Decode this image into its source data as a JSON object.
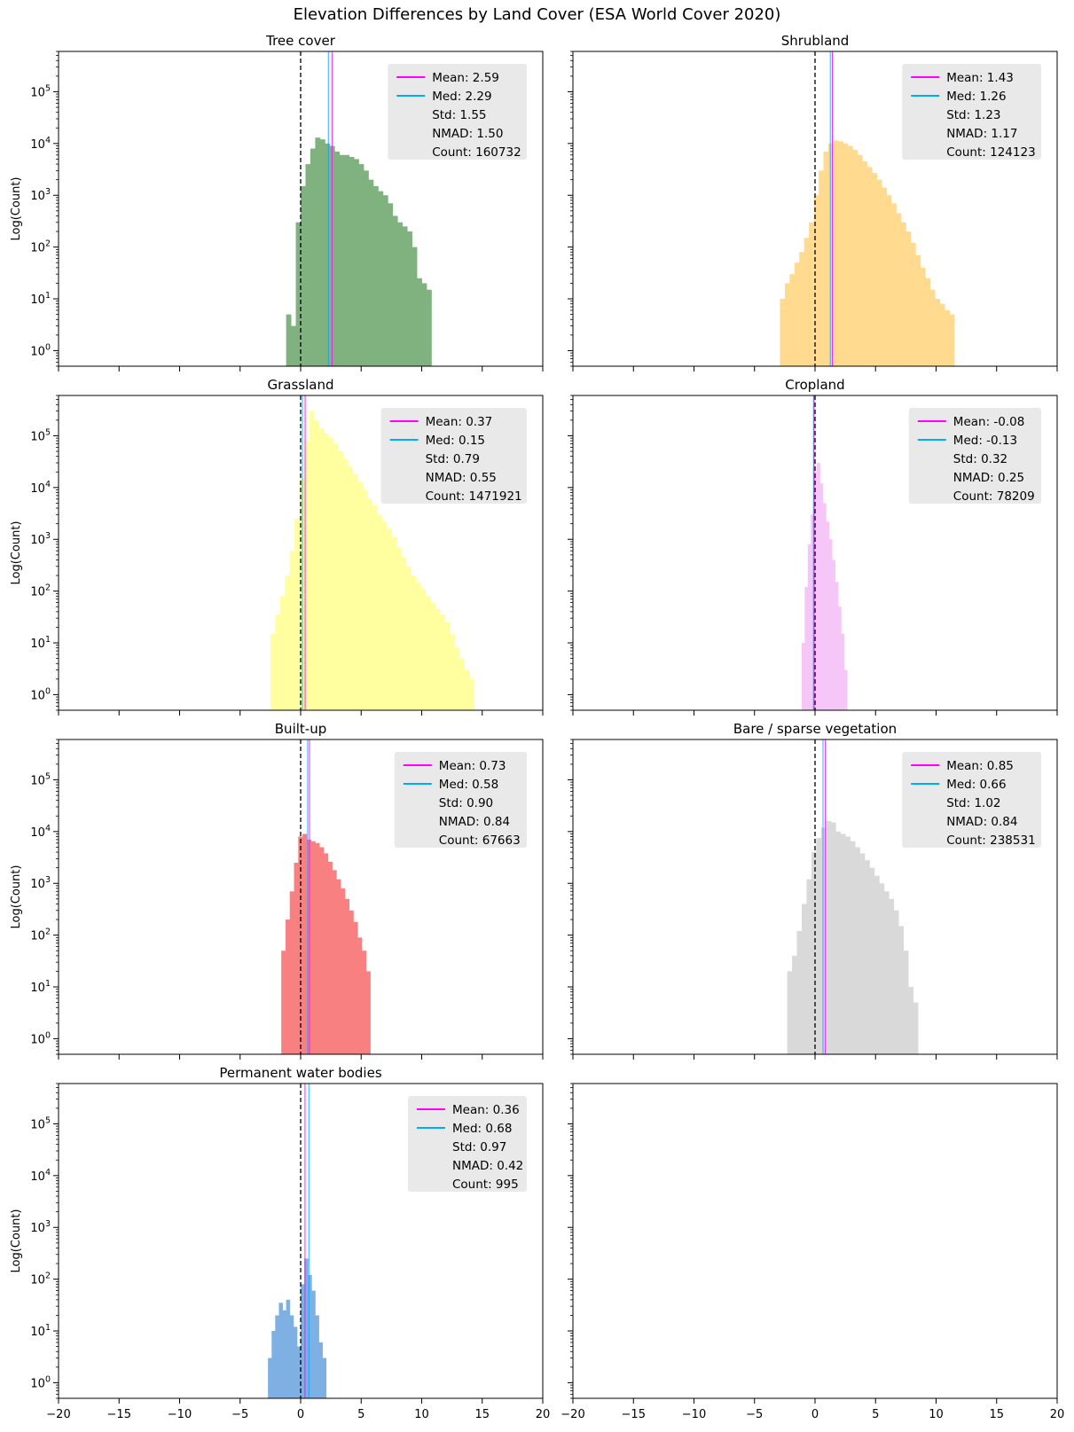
{
  "figure": {
    "title": "Elevation Differences by Land Cover (ESA World Cover 2020)",
    "colors": {
      "mean": "#ff00ff",
      "median": "#00aaff",
      "zero_line": "#000000",
      "legend_bg": "#e8e8e8"
    }
  },
  "chart_data": [
    {
      "type": "histogram",
      "title": "Tree cover",
      "ylabel": "Log(Count)",
      "xlabel": "",
      "xlim": [
        -20,
        20
      ],
      "ylim": [
        0.5,
        600000
      ],
      "yscale": "log",
      "color": "#7fb27f",
      "bin_width": 0.4,
      "bins_start": -1.2,
      "counts": [
        5,
        3,
        300,
        1500,
        4000,
        8000,
        13000,
        12000,
        10000,
        9000,
        7000,
        6000,
        6000,
        5500,
        5000,
        4000,
        3000,
        2000,
        1500,
        1200,
        1000,
        700,
        400,
        300,
        250,
        200,
        100,
        25,
        20,
        15
      ],
      "legend": {
        "mean_label": "Mean: 2.59",
        "median_label": "Med: 2.29",
        "std_label": "Std: 1.55",
        "nmad_label": "NMAD: 1.50",
        "count_label": "Count: 160732"
      },
      "mean": 2.59,
      "median": 2.29
    },
    {
      "type": "histogram",
      "title": "Shrubland",
      "ylabel": "",
      "xlabel": "",
      "xlim": [
        -20,
        20
      ],
      "ylim": [
        0.5,
        600000
      ],
      "yscale": "log",
      "color": "#ffda8f",
      "bin_width": 0.4,
      "bins_start": -2.9,
      "counts": [
        10,
        20,
        30,
        50,
        80,
        150,
        300,
        1000,
        3000,
        7000,
        10000,
        11500,
        11000,
        10000,
        9000,
        7500,
        6000,
        4500,
        3500,
        2700,
        2000,
        1400,
        1000,
        700,
        450,
        300,
        200,
        120,
        70,
        40,
        25,
        15,
        10,
        8,
        6,
        5
      ],
      "legend": {
        "mean_label": "Mean: 1.43",
        "median_label": "Med: 1.26",
        "std_label": "Std: 1.23",
        "nmad_label": "NMAD: 1.17",
        "count_label": "Count: 124123"
      },
      "mean": 1.43,
      "median": 1.26
    },
    {
      "type": "histogram",
      "title": "Grassland",
      "ylabel": "Log(Count)",
      "xlabel": "",
      "xlim": [
        -20,
        20
      ],
      "ylim": [
        0.5,
        600000
      ],
      "yscale": "log",
      "color": "#ffffa0",
      "bin_width": 0.4,
      "bins_start": -2.5,
      "counts": [
        15,
        35,
        80,
        200,
        600,
        2500,
        15000,
        80000,
        300000,
        200000,
        140000,
        110000,
        90000,
        70000,
        50000,
        35000,
        25000,
        18000,
        13000,
        9000,
        6000,
        4500,
        3000,
        2200,
        1600,
        1100,
        700,
        450,
        300,
        200,
        150,
        110,
        80,
        60,
        45,
        35,
        25,
        15,
        8,
        5,
        3,
        2
      ],
      "legend": {
        "mean_label": "Mean: 0.37",
        "median_label": "Med: 0.15",
        "std_label": "Std: 0.79",
        "nmad_label": "NMAD: 0.55",
        "count_label": "Count: 1471921"
      },
      "mean": 0.37,
      "median": 0.15
    },
    {
      "type": "histogram",
      "title": "Cropland",
      "ylabel": "",
      "xlabel": "",
      "xlim": [
        -20,
        20
      ],
      "ylim": [
        0.5,
        600000
      ],
      "yscale": "log",
      "color": "#f5c6f7",
      "bin_width": 0.25,
      "bins_start": -1.1,
      "counts": [
        10,
        120,
        800,
        3000,
        20000,
        30000,
        12000,
        5000,
        2200,
        1000,
        400,
        150,
        50,
        15,
        3
      ],
      "legend": {
        "mean_label": "Mean: -0.08",
        "median_label": "Med: -0.13",
        "std_label": "Std: 0.32",
        "nmad_label": "NMAD: 0.25",
        "count_label": "Count: 78209"
      },
      "mean": -0.08,
      "median": -0.13
    },
    {
      "type": "histogram",
      "title": "Built-up",
      "ylabel": "Log(Count)",
      "xlabel": "",
      "xlim": [
        -20,
        20
      ],
      "ylim": [
        0.5,
        600000
      ],
      "yscale": "log",
      "color": "#f98080",
      "bin_width": 0.35,
      "bins_start": -1.6,
      "counts": [
        50,
        200,
        700,
        2500,
        8000,
        9000,
        7000,
        6500,
        6000,
        5000,
        3800,
        2600,
        1800,
        1200,
        800,
        500,
        300,
        180,
        90,
        50,
        20
      ],
      "legend": {
        "mean_label": "Mean: 0.73",
        "median_label": "Med: 0.58",
        "std_label": "Std: 0.90",
        "nmad_label": "NMAD: 0.84",
        "count_label": "Count: 67663"
      },
      "mean": 0.73,
      "median": 0.58
    },
    {
      "type": "histogram",
      "title": "Bare / sparse vegetation",
      "ylabel": "",
      "xlabel": "",
      "xlim": [
        -20,
        20
      ],
      "ylim": [
        0.5,
        600000
      ],
      "yscale": "log",
      "color": "#d9d9d9",
      "bin_width": 0.4,
      "bins_start": -2.3,
      "counts": [
        20,
        40,
        120,
        400,
        1200,
        4000,
        7500,
        12000,
        16000,
        15000,
        10000,
        9000,
        8000,
        6500,
        5000,
        3800,
        2800,
        2000,
        1400,
        1000,
        700,
        500,
        300,
        150,
        50,
        10,
        5
      ],
      "legend": {
        "mean_label": "Mean: 0.85",
        "median_label": "Med: 0.66",
        "std_label": "Std: 1.02",
        "nmad_label": "NMAD: 0.84",
        "count_label": "Count: 238531"
      },
      "mean": 0.85,
      "median": 0.66
    },
    {
      "type": "histogram",
      "title": "Permanent water bodies",
      "ylabel": "Log(Count)",
      "xlabel": "",
      "xlim": [
        -20,
        20
      ],
      "ylim": [
        0.5,
        600000
      ],
      "yscale": "log",
      "color": "#7fb0e3",
      "bin_width": 0.3,
      "bins_start": -2.7,
      "counts": [
        3,
        10,
        20,
        35,
        25,
        40,
        20,
        12,
        5,
        80,
        250,
        120,
        60,
        20,
        6,
        3
      ],
      "legend": {
        "mean_label": "Mean: 0.36",
        "median_label": "Med: 0.68",
        "std_label": "Std: 0.97",
        "nmad_label": "NMAD: 0.42",
        "count_label": "Count: 995"
      },
      "mean": 0.36,
      "median": 0.68
    }
  ],
  "axes": {
    "x_ticks": [
      -20,
      -15,
      -10,
      -5,
      0,
      5,
      10,
      15,
      20
    ],
    "x_tick_labels": [
      "−20",
      "−15",
      "−10",
      "−5",
      "0",
      "5",
      "10",
      "15",
      "20"
    ],
    "y_ticks": [
      1,
      10,
      100,
      1000,
      10000,
      100000
    ],
    "y_tick_bases": [
      "10",
      "10",
      "10",
      "10",
      "10",
      "10"
    ],
    "y_tick_exps": [
      "0",
      "1",
      "2",
      "3",
      "4",
      "5"
    ]
  }
}
